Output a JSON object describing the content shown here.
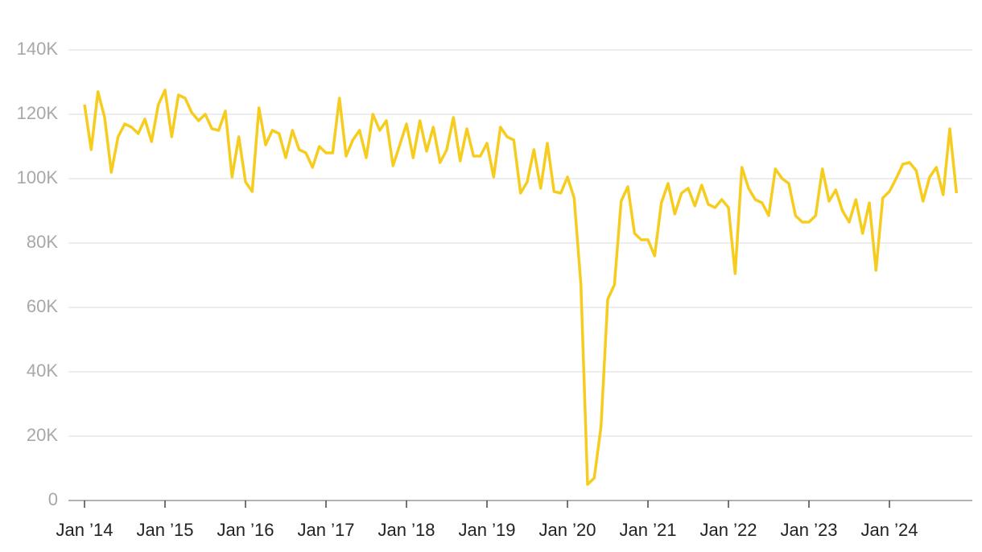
{
  "chart_data": {
    "type": "line",
    "x": [
      "2014-01",
      "2014-02",
      "2014-03",
      "2014-04",
      "2014-05",
      "2014-06",
      "2014-07",
      "2014-08",
      "2014-09",
      "2014-10",
      "2014-11",
      "2014-12",
      "2015-01",
      "2015-02",
      "2015-03",
      "2015-04",
      "2015-05",
      "2015-06",
      "2015-07",
      "2015-08",
      "2015-09",
      "2015-10",
      "2015-11",
      "2015-12",
      "2016-01",
      "2016-02",
      "2016-03",
      "2016-04",
      "2016-05",
      "2016-06",
      "2016-07",
      "2016-08",
      "2016-09",
      "2016-10",
      "2016-11",
      "2016-12",
      "2017-01",
      "2017-02",
      "2017-03",
      "2017-04",
      "2017-05",
      "2017-06",
      "2017-07",
      "2017-08",
      "2017-09",
      "2017-10",
      "2017-11",
      "2017-12",
      "2018-01",
      "2018-02",
      "2018-03",
      "2018-04",
      "2018-05",
      "2018-06",
      "2018-07",
      "2018-08",
      "2018-09",
      "2018-10",
      "2018-11",
      "2018-12",
      "2019-01",
      "2019-02",
      "2019-03",
      "2019-04",
      "2019-05",
      "2019-06",
      "2019-07",
      "2019-08",
      "2019-09",
      "2019-10",
      "2019-11",
      "2019-12",
      "2020-01",
      "2020-02",
      "2020-03",
      "2020-04",
      "2020-05",
      "2020-06",
      "2020-07",
      "2020-08",
      "2020-09",
      "2020-10",
      "2020-11",
      "2020-12",
      "2021-01",
      "2021-02",
      "2021-03",
      "2021-04",
      "2021-05",
      "2021-06",
      "2021-07",
      "2021-08",
      "2021-09",
      "2021-10",
      "2021-11",
      "2021-12",
      "2022-01",
      "2022-02",
      "2022-03",
      "2022-04",
      "2022-05",
      "2022-06",
      "2022-07",
      "2022-08",
      "2022-09",
      "2022-10",
      "2022-11",
      "2022-12",
      "2023-01",
      "2023-02",
      "2023-03",
      "2023-04",
      "2023-05",
      "2023-06",
      "2023-07",
      "2023-08",
      "2023-09",
      "2023-10",
      "2023-11",
      "2023-12",
      "2024-01",
      "2024-02",
      "2024-03",
      "2024-04",
      "2024-05",
      "2024-06",
      "2024-07",
      "2024-08",
      "2024-09",
      "2024-10",
      "2024-11"
    ],
    "values": [
      123000,
      109000,
      127000,
      119000,
      102000,
      113000,
      117000,
      116000,
      114000,
      118500,
      111500,
      123000,
      127500,
      113000,
      126000,
      125000,
      120500,
      118000,
      120000,
      115500,
      115000,
      121000,
      100500,
      113000,
      99000,
      96000,
      122000,
      110500,
      115000,
      114000,
      106500,
      115000,
      109000,
      108000,
      103500,
      110000,
      108000,
      108000,
      125000,
      107000,
      112000,
      115000,
      106500,
      120000,
      115000,
      118000,
      104000,
      110500,
      117000,
      106500,
      118000,
      108500,
      116000,
      105000,
      109000,
      119000,
      105500,
      115500,
      107000,
      107000,
      111000,
      100500,
      116000,
      113000,
      112000,
      95500,
      99000,
      109000,
      97000,
      111000,
      96000,
      95500,
      100500,
      94000,
      67000,
      5000,
      7000,
      23000,
      62500,
      67000,
      93000,
      97500,
      83000,
      81000,
      81000,
      76000,
      92500,
      98500,
      89000,
      95500,
      97000,
      91500,
      98000,
      92000,
      91000,
      93500,
      91000,
      70500,
      103500,
      97000,
      93500,
      92500,
      88500,
      103000,
      100000,
      98500,
      88500,
      86500,
      86500,
      88500,
      103000,
      93000,
      96500,
      90000,
      86500,
      93500,
      83000,
      92500,
      71500,
      94000,
      96000,
      100000,
      104500,
      105000,
      102500,
      93000,
      100500,
      103500,
      95000,
      115500,
      95500
    ],
    "color": "#f6cd1f",
    "xlim": [
      "2014-01",
      "2025-01"
    ],
    "xticks": [
      {
        "value": "2014-01",
        "label": "Jan ’14"
      },
      {
        "value": "2015-01",
        "label": "Jan ’15"
      },
      {
        "value": "2016-01",
        "label": "Jan ’16"
      },
      {
        "value": "2017-01",
        "label": "Jan ’17"
      },
      {
        "value": "2018-01",
        "label": "Jan ’18"
      },
      {
        "value": "2019-01",
        "label": "Jan ’19"
      },
      {
        "value": "2020-01",
        "label": "Jan ’20"
      },
      {
        "value": "2021-01",
        "label": "Jan ’21"
      },
      {
        "value": "2022-01",
        "label": "Jan ’22"
      },
      {
        "value": "2023-01",
        "label": "Jan ’23"
      },
      {
        "value": "2024-01",
        "label": "Jan ’24"
      }
    ],
    "ylim": [
      0,
      140000
    ],
    "yticks": [
      0,
      {
        "value": 20000,
        "label": "20K"
      },
      {
        "value": 40000,
        "label": "40K"
      },
      {
        "value": 60000,
        "label": "60K"
      },
      {
        "value": 80000,
        "label": "80K"
      },
      {
        "value": 100000,
        "label": "100K"
      },
      {
        "value": 120000,
        "label": "120K"
      },
      {
        "value": 140000,
        "label": "140K"
      }
    ],
    "grid": true
  }
}
